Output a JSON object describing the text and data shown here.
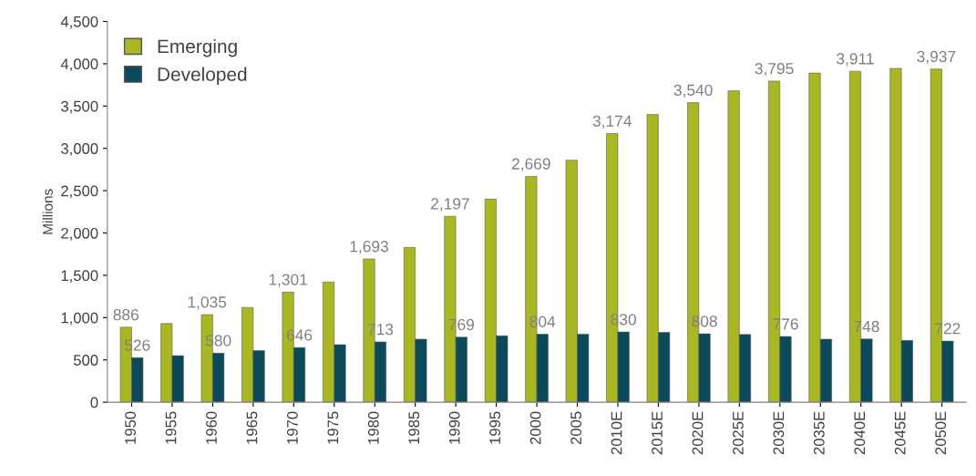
{
  "chart_data": {
    "type": "bar",
    "ylabel": "Millions",
    "categories": [
      "1950",
      "1955",
      "1960",
      "1965",
      "1970",
      "1975",
      "1980",
      "1985",
      "1990",
      "1995",
      "2000",
      "2005",
      "2010E",
      "2015E",
      "2020E",
      "2025E",
      "2030E",
      "2035E",
      "2040E",
      "2045E",
      "2050E"
    ],
    "series": [
      {
        "name": "Emerging",
        "color": "#a9b820",
        "values": [
          886,
          930,
          1035,
          1120,
          1301,
          1420,
          1693,
          1830,
          2197,
          2400,
          2669,
          2860,
          3174,
          3400,
          3540,
          3680,
          3795,
          3890,
          3911,
          3945,
          3937
        ],
        "value_labels": [
          "886",
          null,
          "1,035",
          null,
          "1,301",
          null,
          "1,693",
          null,
          "2,197",
          null,
          "2,669",
          null,
          "3,174",
          null,
          "3,540",
          null,
          "3,795",
          null,
          "3,911",
          null,
          "3,937"
        ]
      },
      {
        "name": "Developed",
        "color": "#0b4a5c",
        "values": [
          526,
          550,
          580,
          610,
          646,
          680,
          713,
          745,
          769,
          785,
          804,
          805,
          830,
          825,
          808,
          800,
          776,
          745,
          748,
          730,
          722
        ],
        "value_labels": [
          "526",
          null,
          "580",
          null,
          "646",
          null,
          "713",
          null,
          "769",
          null,
          "804",
          null,
          "830",
          null,
          "808",
          null,
          "776",
          null,
          "748",
          null,
          "722"
        ]
      }
    ],
    "ylim": [
      0,
      4500
    ],
    "yticks": [
      {
        "value": 0,
        "label": "0"
      },
      {
        "value": 500,
        "label": "500"
      },
      {
        "value": 1000,
        "label": "1,000"
      },
      {
        "value": 1500,
        "label": "1,500"
      },
      {
        "value": 2000,
        "label": "2,000"
      },
      {
        "value": 2500,
        "label": "2,500"
      },
      {
        "value": 3000,
        "label": "3,000"
      },
      {
        "value": 3500,
        "label": "3,500"
      },
      {
        "value": 4000,
        "label": "4,000"
      },
      {
        "value": 4500,
        "label": "4,500"
      }
    ],
    "grid": false,
    "legend": "top left"
  }
}
